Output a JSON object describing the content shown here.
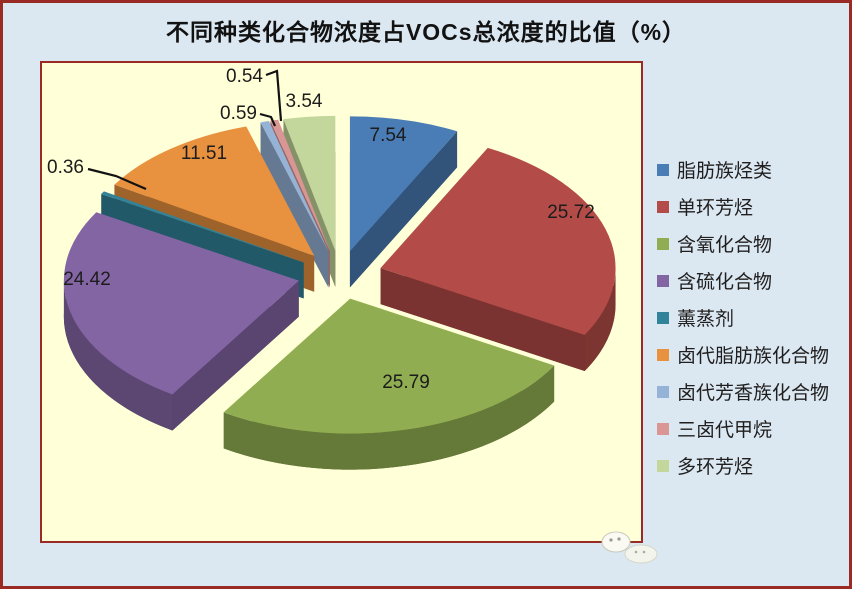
{
  "page": {
    "background_color": "#DBE8F2",
    "frame_color": "#9A2A24",
    "plot_background_color": "#FFFFD8"
  },
  "title": "不同种类化合物浓度占VOCs总浓度的比值（%）",
  "chart_data": {
    "type": "pie",
    "style": "3d-exploded",
    "title": "不同种类化合物浓度占VOCs总浓度的比值（%）",
    "unit": "%",
    "legend_position": "right",
    "start_angle_deg": 0,
    "categories": [
      "脂肪族烃类",
      "单环芳烃",
      "含氧化合物",
      "含硫化合物",
      "薰蒸剂",
      "卤代脂肪族化合物",
      "卤代芳香族化合物",
      "三卤代甲烷",
      "多环芳烃"
    ],
    "values": [
      7.54,
      25.72,
      25.79,
      24.42,
      0.36,
      11.51,
      0.59,
      0.54,
      3.54
    ],
    "colors": [
      "#4A7CB5",
      "#B34B48",
      "#90AE51",
      "#8365A4",
      "#318399",
      "#E8913F",
      "#95B3D7",
      "#D99694",
      "#C3D69B"
    ],
    "label_color": "#1C1C1C"
  }
}
